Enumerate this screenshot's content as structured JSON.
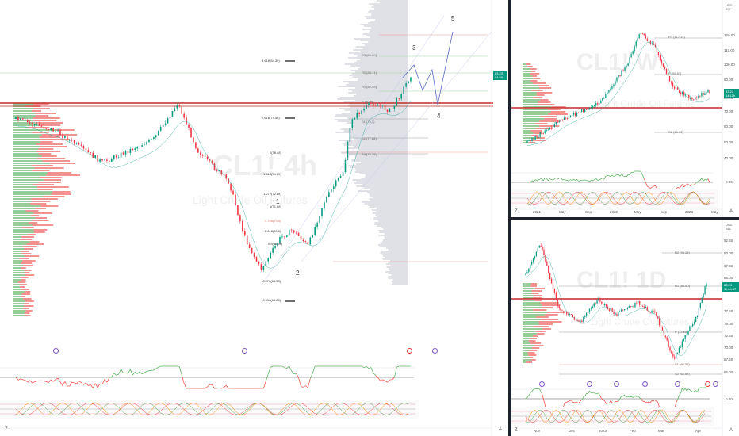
{
  "colors": {
    "up": "#089981",
    "down": "#f23645",
    "pivot_red": "#e53935",
    "ma_green": "#26a69a",
    "volume_grey": "#d1d4dc",
    "rsi_green": "#4caf50",
    "rsi_red": "#f44336",
    "separator": "#1e222d"
  },
  "main_chart": {
    "symbol": "CL1! 4h",
    "subtitle": "Light Crude Oil Futures",
    "waves": [
      "1",
      "2",
      "3",
      "4",
      "5"
    ],
    "fib_labels": [
      "3.618(84.30)",
      "2.618(79.48)",
      "2(76.48)",
      "1.618(74.65)",
      "1.272(72.88)",
      "1(71.68)",
      "0.786(70.5)",
      "0.618(69.6)",
      "0.5(68.99)",
      "-0.272(65.53)",
      "-0.618(63.86)"
    ],
    "pivot_labels": [
      "R3 (86.60)",
      "R2 (83.31)",
      "R1 (82.09)",
      "P (80.0)",
      "S1 (79.3)",
      "S2 (77.68)",
      "S3 (76.39)"
    ],
    "price_tag": "83.23",
    "price_tag_time": "04:50",
    "currency": "USD",
    "currency_unit": "BLL",
    "corner_left": "Z",
    "corner_right": "A"
  },
  "weekly_chart": {
    "symbol": "CL1! W",
    "subtitle": "Light Crude Oil Futures",
    "price_tag": "83.23",
    "price_tag_time": "14:12h",
    "currency": "USD",
    "currency_unit": "BLL",
    "price_labels": [
      "120.00",
      "110.00",
      "100.00",
      "90.00",
      "80.00",
      "70.00",
      "60.00",
      "50.00",
      "40.00"
    ],
    "indicator_label": "0.00",
    "time_labels": [
      "2021",
      "May",
      "Sep",
      "2022",
      "May",
      "Sep",
      "2023",
      "May"
    ],
    "pivot_labels": [
      "R1 (117.15)",
      "P (96.87)",
      "S1 (58.73)"
    ],
    "corner_left": "Z",
    "corner_right": "A"
  },
  "daily_chart": {
    "symbol": "CL1! 1D",
    "subtitle": "Light Crude Oil Futures",
    "price_tag": "83.23",
    "price_tag_time": "11:04:37",
    "currency": "USD",
    "currency_unit": "BLL",
    "price_labels": [
      "92.50",
      "90.00",
      "87.50",
      "85.00",
      "82.50",
      "77.50",
      "75.00",
      "72.50",
      "70.00",
      "67.50",
      "65.00"
    ],
    "indicator_label": "0.00",
    "time_labels": [
      "Nov",
      "Dec",
      "2023",
      "Feb",
      "Mar",
      "Apr"
    ],
    "pivot_labels": [
      "R2 (90.24)",
      "R1 (82.90)",
      "P (73.68)",
      "S1 (66.37)",
      "S2 (64.52)"
    ],
    "corner_left": "Z",
    "corner_right": "A"
  }
}
